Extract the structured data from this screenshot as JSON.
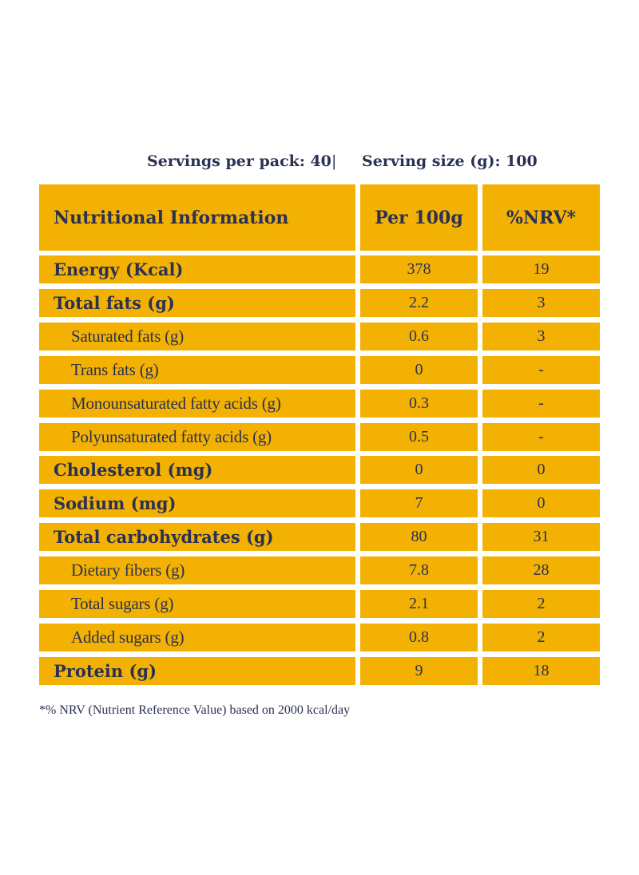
{
  "serving": {
    "servings_per_pack": "Servings per pack: 40",
    "separator": "|",
    "serving_size": "Serving size (g): 100"
  },
  "table": {
    "headers": [
      "Nutritional Information",
      "Per 100g",
      "%NRV*"
    ],
    "rows": [
      {
        "label": "Energy (Kcal)",
        "per100g": "378",
        "nrv": "19",
        "bold": true
      },
      {
        "label": "Total fats (g)",
        "per100g": "2.2",
        "nrv": "3",
        "bold": true
      },
      {
        "label": "Saturated fats (g)",
        "per100g": "0.6",
        "nrv": "3",
        "bold": false
      },
      {
        "label": "Trans fats (g)",
        "per100g": "0",
        "nrv": "-",
        "bold": false
      },
      {
        "label": "Monounsaturated fatty acids (g)",
        "per100g": "0.3",
        "nrv": "-",
        "bold": false
      },
      {
        "label": "Polyunsaturated fatty acids (g)",
        "per100g": "0.5",
        "nrv": "-",
        "bold": false
      },
      {
        "label": "Cholesterol (mg)",
        "per100g": "0",
        "nrv": "0",
        "bold": true
      },
      {
        "label": "Sodium (mg)",
        "per100g": "7",
        "nrv": "0",
        "bold": true
      },
      {
        "label": "Total carbohydrates (g)",
        "per100g": "80",
        "nrv": "31",
        "bold": true
      },
      {
        "label": "Dietary fibers (g)",
        "per100g": "7.8",
        "nrv": "28",
        "bold": false
      },
      {
        "label": "Total sugars (g)",
        "per100g": "2.1",
        "nrv": "2",
        "bold": false
      },
      {
        "label": "Added sugars (g)",
        "per100g": "0.8",
        "nrv": "2",
        "bold": false
      },
      {
        "label": "Protein (g)",
        "per100g": "9",
        "nrv": "18",
        "bold": true
      }
    ]
  },
  "footnote": "*% NRV (Nutrient Reference Value) based on 2000 kcal/day",
  "colors": {
    "cell_fill": "#f2b103",
    "text": "#2b3152",
    "background": "#ffffff"
  }
}
